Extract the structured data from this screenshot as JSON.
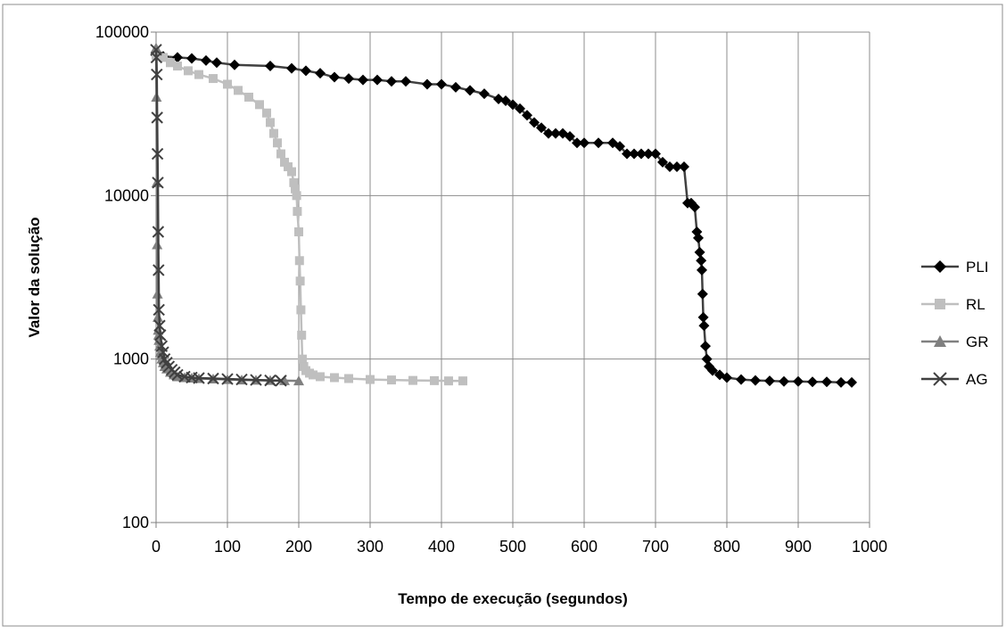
{
  "chart_data": {
    "type": "line",
    "title": "",
    "xlabel": "Tempo de execução  (segundos)",
    "ylabel": "Valor da solução",
    "x_scale": "linear",
    "y_scale": "log",
    "xlim": [
      0,
      1000
    ],
    "ylim": [
      100,
      100000
    ],
    "x_ticks": [
      "0",
      "100",
      "200",
      "300",
      "400",
      "500",
      "600",
      "700",
      "800",
      "900",
      "1000"
    ],
    "y_ticks": [
      "100",
      "1000",
      "10000",
      "100000"
    ],
    "grid": true,
    "legend_position": "right",
    "series": [
      {
        "name": "PLI",
        "color": "#000000",
        "line_color": "#404040",
        "marker": "diamond",
        "x": [
          0,
          10,
          30,
          50,
          70,
          85,
          110,
          160,
          190,
          210,
          230,
          250,
          270,
          290,
          310,
          330,
          350,
          380,
          400,
          420,
          440,
          460,
          480,
          490,
          500,
          510,
          520,
          530,
          540,
          550,
          560,
          570,
          580,
          590,
          600,
          620,
          640,
          650,
          660,
          670,
          680,
          690,
          700,
          710,
          720,
          730,
          740,
          745,
          750,
          755,
          758,
          760,
          762,
          764,
          765,
          766,
          767,
          768,
          770,
          772,
          775,
          780,
          790,
          800,
          820,
          840,
          860,
          880,
          900,
          920,
          940,
          960,
          975
        ],
        "y": [
          72000,
          71000,
          70000,
          69000,
          67000,
          65000,
          63000,
          62000,
          60000,
          58000,
          56000,
          53000,
          52000,
          51000,
          51000,
          50000,
          50000,
          48000,
          48000,
          46000,
          44000,
          42000,
          39000,
          38000,
          36000,
          34000,
          31000,
          28000,
          26000,
          24000,
          24000,
          24000,
          23000,
          21000,
          21000,
          21000,
          21000,
          20000,
          18000,
          18000,
          18000,
          18000,
          18000,
          16000,
          15000,
          15000,
          15000,
          9000,
          9000,
          8500,
          6000,
          5500,
          4500,
          4000,
          3500,
          2500,
          1800,
          1600,
          1200,
          1000,
          900,
          850,
          800,
          770,
          750,
          740,
          735,
          730,
          730,
          725,
          725,
          720,
          720
        ]
      },
      {
        "name": "RL",
        "color": "#bfbfbf",
        "line_color": "#bfbfbf",
        "marker": "square",
        "x": [
          0,
          10,
          20,
          30,
          45,
          60,
          80,
          100,
          115,
          130,
          145,
          155,
          160,
          165,
          170,
          175,
          180,
          185,
          190,
          193,
          195,
          197,
          198,
          200,
          201,
          202,
          203,
          204,
          205,
          207,
          210,
          215,
          220,
          230,
          250,
          270,
          300,
          330,
          360,
          390,
          410,
          430
        ],
        "y": [
          72000,
          70000,
          65000,
          62000,
          58000,
          55000,
          52000,
          48000,
          44000,
          40000,
          36000,
          32000,
          28000,
          24000,
          21000,
          18000,
          16000,
          15000,
          14000,
          12000,
          11000,
          10000,
          8000,
          6000,
          4000,
          3000,
          2000,
          1400,
          1000,
          900,
          850,
          820,
          800,
          780,
          770,
          760,
          750,
          745,
          740,
          738,
          735,
          735
        ]
      },
      {
        "name": "GR",
        "color": "#808080",
        "line_color": "#808080",
        "marker": "triangle",
        "x": [
          0,
          0.5,
          1,
          1.5,
          2,
          2.5,
          3,
          3.5,
          4,
          5,
          6,
          7,
          8,
          10,
          12,
          15,
          20,
          25,
          30,
          40,
          50,
          60,
          80,
          100,
          120,
          140,
          160,
          180,
          200
        ],
        "y": [
          80000,
          40000,
          12000,
          5000,
          2500,
          1800,
          1500,
          1400,
          1300,
          1200,
          1100,
          1050,
          1000,
          950,
          900,
          870,
          830,
          800,
          780,
          770,
          765,
          760,
          755,
          750,
          745,
          742,
          740,
          738,
          735
        ]
      },
      {
        "name": "AG",
        "color": "#404040",
        "line_color": "#404040",
        "marker": "x",
        "x": [
          0,
          0.5,
          1,
          1.5,
          2,
          2.5,
          3,
          3.5,
          4,
          5,
          6,
          8,
          10,
          12,
          15,
          18,
          22,
          26,
          30,
          40,
          50,
          60,
          80,
          100,
          120,
          140,
          160,
          175
        ],
        "y": [
          78000,
          70000,
          55000,
          30000,
          18000,
          12000,
          6000,
          3500,
          2000,
          1600,
          1400,
          1200,
          1100,
          1000,
          950,
          900,
          860,
          830,
          800,
          780,
          770,
          765,
          760,
          755,
          750,
          745,
          740,
          738
        ]
      }
    ]
  }
}
